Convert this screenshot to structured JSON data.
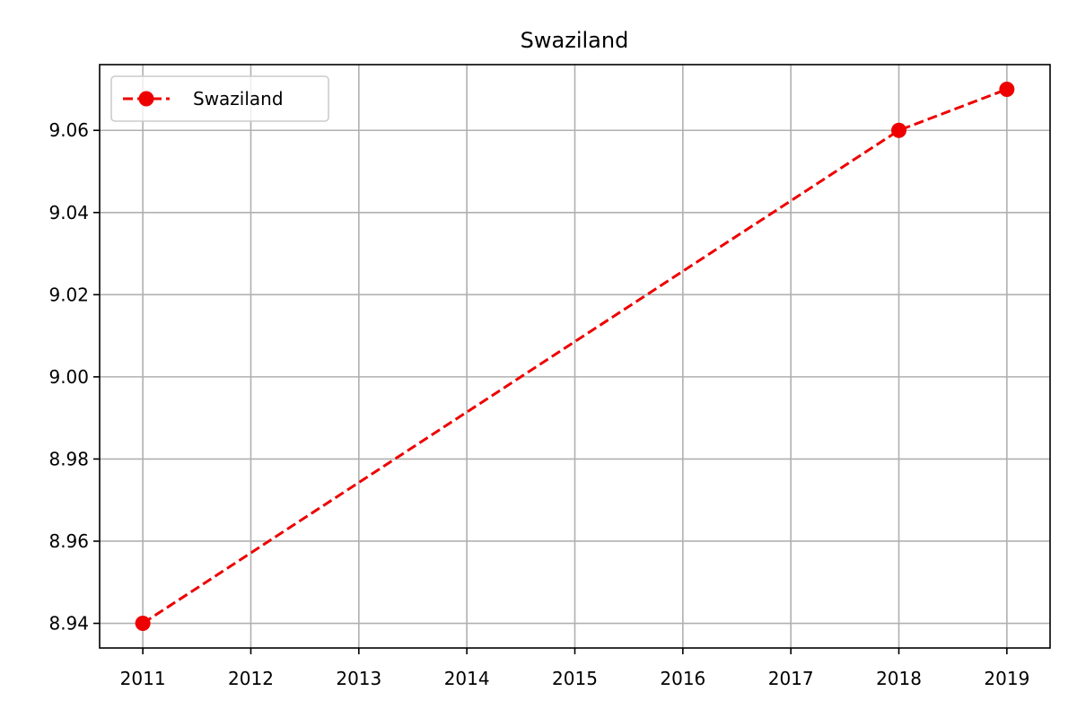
{
  "chart_data": {
    "type": "line",
    "title": "Swaziland",
    "xlabel": "",
    "ylabel": "",
    "x_ticks": [
      "2011",
      "2012",
      "2013",
      "2014",
      "2015",
      "2016",
      "2017",
      "2018",
      "2019"
    ],
    "y_ticks": [
      "8.94",
      "8.96",
      "8.98",
      "9.00",
      "9.02",
      "9.04",
      "9.06"
    ],
    "xlim": [
      2010.6,
      2019.4
    ],
    "ylim": [
      8.934,
      9.076
    ],
    "grid": true,
    "legend_position": "top-left",
    "series": [
      {
        "name": "Swaziland",
        "color": "#ee0000",
        "line_style": "dashed",
        "marker": "circle",
        "x": [
          2011,
          2018,
          2019
        ],
        "y": [
          8.94,
          9.06,
          9.07
        ]
      }
    ]
  }
}
